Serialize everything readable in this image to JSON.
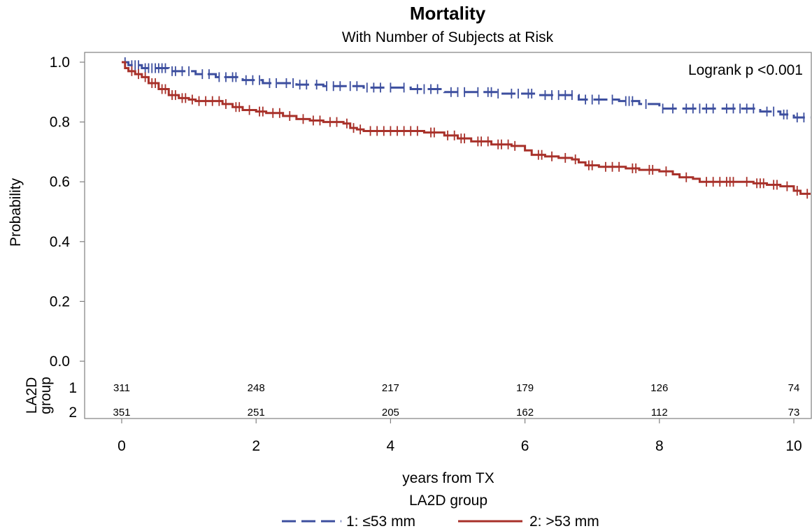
{
  "chart_data": {
    "type": "line",
    "subtype": "kaplan-meier",
    "title": "Mortality",
    "subtitle": "With Number of Subjects at Risk",
    "xlabel": "years from TX",
    "ylabel": "Probability",
    "xlim": [
      -0.6,
      10.25
    ],
    "ylim": [
      0,
      1.0
    ],
    "x_ticks": [
      "0",
      "2",
      "4",
      "6",
      "8",
      "10"
    ],
    "y_ticks": [
      "0.0",
      "0.2",
      "0.4",
      "0.6",
      "0.8",
      "1.0"
    ],
    "grid": false,
    "annotation": "Logrank p  <0.001",
    "legend": {
      "title": "LA2D group",
      "position": "bottom",
      "entries": [
        "1: ≤53 mm",
        "2: >53 mm"
      ]
    },
    "risk_table": {
      "label_line1": "LA2D",
      "label_line2": "group",
      "times": [
        0,
        2,
        4,
        6,
        8,
        10
      ],
      "rows": [
        {
          "group": "1",
          "counts": [
            "311",
            "248",
            "217",
            "179",
            "126",
            "74"
          ]
        },
        {
          "group": "2",
          "counts": [
            "351",
            "251",
            "205",
            "162",
            "112",
            "73"
          ]
        }
      ]
    },
    "series": [
      {
        "name": "1: ≤53 mm",
        "color": "#3d4f9f",
        "dash": "dashed",
        "steps": [
          [
            0,
            1.0
          ],
          [
            0.1,
            0.99
          ],
          [
            0.3,
            0.98
          ],
          [
            0.7,
            0.97
          ],
          [
            1.1,
            0.96
          ],
          [
            1.4,
            0.95
          ],
          [
            1.8,
            0.94
          ],
          [
            2.1,
            0.93
          ],
          [
            2.6,
            0.925
          ],
          [
            3.0,
            0.92
          ],
          [
            3.6,
            0.915
          ],
          [
            4.3,
            0.91
          ],
          [
            4.8,
            0.9
          ],
          [
            5.6,
            0.895
          ],
          [
            6.2,
            0.89
          ],
          [
            6.8,
            0.875
          ],
          [
            7.4,
            0.87
          ],
          [
            7.7,
            0.86
          ],
          [
            8.0,
            0.845
          ],
          [
            8.9,
            0.845
          ],
          [
            9.5,
            0.835
          ],
          [
            9.8,
            0.825
          ],
          [
            10.0,
            0.815
          ],
          [
            10.25,
            0.815
          ]
        ],
        "censor_x": [
          0.05,
          0.15,
          0.2,
          0.25,
          0.35,
          0.4,
          0.45,
          0.5,
          0.55,
          0.6,
          0.65,
          0.75,
          0.8,
          0.9,
          1.0,
          1.2,
          1.3,
          1.45,
          1.55,
          1.65,
          1.7,
          1.85,
          1.95,
          2.05,
          2.2,
          2.3,
          2.45,
          2.55,
          2.65,
          2.75,
          2.9,
          3.05,
          3.15,
          3.25,
          3.4,
          3.5,
          3.65,
          3.75,
          3.85,
          4.0,
          4.2,
          4.4,
          4.5,
          4.6,
          4.7,
          4.9,
          5.0,
          5.1,
          5.3,
          5.45,
          5.5,
          5.6,
          5.8,
          5.9,
          6.05,
          6.1,
          6.3,
          6.4,
          6.5,
          6.6,
          6.7,
          6.9,
          7.0,
          7.1,
          7.3,
          7.5,
          7.55,
          7.6,
          7.8,
          8.05,
          8.2,
          8.4,
          8.5,
          8.6,
          8.7,
          8.8,
          9.0,
          9.1,
          9.2,
          9.3,
          9.4,
          9.6,
          9.7,
          9.85,
          9.9,
          10.05,
          10.15
        ]
      },
      {
        "name": "2: >53 mm",
        "color": "#a8312a",
        "dash": "solid",
        "steps": [
          [
            0,
            1.0
          ],
          [
            0.05,
            0.98
          ],
          [
            0.1,
            0.97
          ],
          [
            0.2,
            0.96
          ],
          [
            0.3,
            0.95
          ],
          [
            0.4,
            0.93
          ],
          [
            0.55,
            0.91
          ],
          [
            0.7,
            0.89
          ],
          [
            0.85,
            0.88
          ],
          [
            1.0,
            0.875
          ],
          [
            1.1,
            0.87
          ],
          [
            1.5,
            0.86
          ],
          [
            1.65,
            0.85
          ],
          [
            1.8,
            0.84
          ],
          [
            2.0,
            0.835
          ],
          [
            2.15,
            0.83
          ],
          [
            2.4,
            0.82
          ],
          [
            2.6,
            0.81
          ],
          [
            2.8,
            0.805
          ],
          [
            3.0,
            0.8
          ],
          [
            3.3,
            0.795
          ],
          [
            3.4,
            0.78
          ],
          [
            3.5,
            0.775
          ],
          [
            3.6,
            0.77
          ],
          [
            4.5,
            0.765
          ],
          [
            4.8,
            0.755
          ],
          [
            5.0,
            0.745
          ],
          [
            5.2,
            0.735
          ],
          [
            5.5,
            0.725
          ],
          [
            5.8,
            0.72
          ],
          [
            6.0,
            0.705
          ],
          [
            6.1,
            0.69
          ],
          [
            6.3,
            0.685
          ],
          [
            6.5,
            0.68
          ],
          [
            6.7,
            0.675
          ],
          [
            6.8,
            0.665
          ],
          [
            6.9,
            0.655
          ],
          [
            7.1,
            0.65
          ],
          [
            7.5,
            0.645
          ],
          [
            7.7,
            0.64
          ],
          [
            8.0,
            0.635
          ],
          [
            8.2,
            0.625
          ],
          [
            8.3,
            0.615
          ],
          [
            8.5,
            0.61
          ],
          [
            8.6,
            0.6
          ],
          [
            9.2,
            0.6
          ],
          [
            9.4,
            0.595
          ],
          [
            9.6,
            0.59
          ],
          [
            9.8,
            0.585
          ],
          [
            10.0,
            0.57
          ],
          [
            10.1,
            0.56
          ],
          [
            10.25,
            0.56
          ]
        ],
        "censor_x": [
          0.15,
          0.25,
          0.35,
          0.45,
          0.5,
          0.6,
          0.65,
          0.75,
          0.8,
          0.9,
          0.95,
          1.05,
          1.15,
          1.25,
          1.35,
          1.45,
          1.55,
          1.7,
          1.75,
          1.9,
          2.05,
          2.1,
          2.25,
          2.35,
          2.5,
          2.7,
          2.85,
          2.95,
          3.1,
          3.2,
          3.35,
          3.45,
          3.55,
          3.7,
          3.8,
          3.9,
          4.0,
          4.1,
          4.2,
          4.3,
          4.4,
          4.6,
          4.65,
          4.85,
          4.95,
          5.05,
          5.1,
          5.3,
          5.35,
          5.45,
          5.6,
          5.65,
          5.75,
          5.85,
          6.2,
          6.25,
          6.4,
          6.6,
          6.75,
          6.95,
          7.0,
          7.2,
          7.3,
          7.4,
          7.6,
          7.65,
          7.85,
          7.9,
          8.1,
          8.4,
          8.7,
          8.8,
          8.9,
          9.0,
          9.05,
          9.1,
          9.3,
          9.45,
          9.5,
          9.55,
          9.7,
          9.75,
          9.9,
          10.05,
          10.2
        ]
      }
    ]
  }
}
